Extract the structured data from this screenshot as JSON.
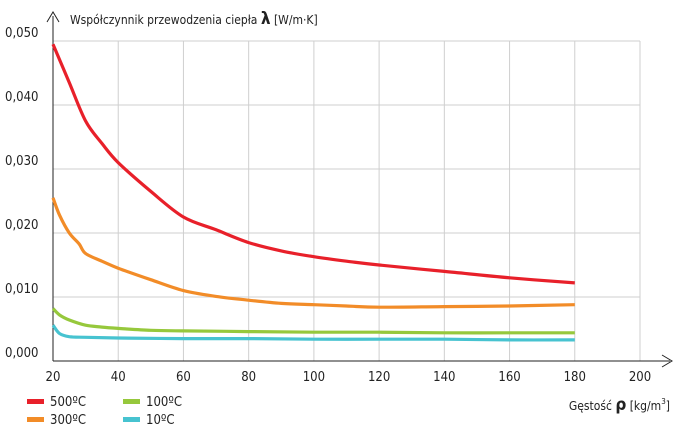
{
  "chart_data": {
    "type": "line",
    "ylabel_prefix": "Współczynnik przewodzenia ciepła",
    "ylabel_symbol": "λ",
    "ylabel_unit": "[W/m·K]",
    "xlabel_prefix": "Gęstość",
    "xlabel_symbol": "ρ",
    "xlabel_unit_base": "[kg/m",
    "xlabel_unit_exp": "3",
    "xlabel_unit_close": "]",
    "xlim": [
      20,
      200
    ],
    "ylim": [
      0,
      0.05
    ],
    "x_ticks": [
      20,
      40,
      60,
      80,
      100,
      120,
      140,
      160,
      180,
      200
    ],
    "x_tick_labels": [
      "20",
      "40",
      "60",
      "80",
      "100",
      "120",
      "140",
      "160",
      "180",
      "200"
    ],
    "y_ticks": [
      0,
      0.01,
      0.02,
      0.03,
      0.04,
      0.05
    ],
    "y_tick_labels": [
      "0,000",
      "0,010",
      "0,020",
      "0,030",
      "0,040",
      "0,050"
    ],
    "grid": true,
    "legend_position": "bottom-left",
    "series": [
      {
        "name": "500ºC",
        "color": "#e8202a",
        "points": [
          [
            20,
            0.0495
          ],
          [
            25,
            0.0435
          ],
          [
            30,
            0.0375
          ],
          [
            35,
            0.034
          ],
          [
            40,
            0.031
          ],
          [
            50,
            0.0265
          ],
          [
            60,
            0.0225
          ],
          [
            70,
            0.0205
          ],
          [
            80,
            0.0185
          ],
          [
            90,
            0.0172
          ],
          [
            100,
            0.0163
          ],
          [
            110,
            0.0156
          ],
          [
            120,
            0.015
          ],
          [
            140,
            0.014
          ],
          [
            160,
            0.013
          ],
          [
            180,
            0.0122
          ]
        ]
      },
      {
        "name": "300ºC",
        "color": "#f28c28",
        "points": [
          [
            20,
            0.0255
          ],
          [
            22,
            0.0228
          ],
          [
            25,
            0.02
          ],
          [
            28,
            0.0183
          ],
          [
            30,
            0.0168
          ],
          [
            35,
            0.0156
          ],
          [
            40,
            0.0145
          ],
          [
            50,
            0.0127
          ],
          [
            60,
            0.011
          ],
          [
            70,
            0.0101
          ],
          [
            80,
            0.0095
          ],
          [
            90,
            0.009
          ],
          [
            100,
            0.0088
          ],
          [
            110,
            0.0086
          ],
          [
            120,
            0.0084
          ],
          [
            140,
            0.0085
          ],
          [
            160,
            0.0086
          ],
          [
            180,
            0.0088
          ]
        ]
      },
      {
        "name": "100ºC",
        "color": "#96c83c",
        "points": [
          [
            20,
            0.0082
          ],
          [
            22,
            0.0072
          ],
          [
            25,
            0.0064
          ],
          [
            30,
            0.0056
          ],
          [
            35,
            0.0053
          ],
          [
            40,
            0.0051
          ],
          [
            50,
            0.0048
          ],
          [
            60,
            0.0047
          ],
          [
            80,
            0.0046
          ],
          [
            100,
            0.0045
          ],
          [
            120,
            0.0045
          ],
          [
            140,
            0.0044
          ],
          [
            160,
            0.0044
          ],
          [
            180,
            0.0044
          ]
        ]
      },
      {
        "name": "10ºC",
        "color": "#47c3d0",
        "points": [
          [
            20,
            0.0056
          ],
          [
            22,
            0.0043
          ],
          [
            25,
            0.0038
          ],
          [
            30,
            0.0037
          ],
          [
            40,
            0.0036
          ],
          [
            60,
            0.0035
          ],
          [
            80,
            0.0035
          ],
          [
            100,
            0.0034
          ],
          [
            120,
            0.0034
          ],
          [
            140,
            0.0034
          ],
          [
            160,
            0.0033
          ],
          [
            180,
            0.0033
          ]
        ]
      }
    ]
  }
}
